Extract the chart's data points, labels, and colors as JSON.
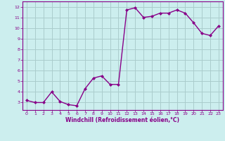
{
  "x": [
    0,
    1,
    2,
    3,
    4,
    5,
    6,
    7,
    8,
    9,
    10,
    11,
    12,
    13,
    14,
    15,
    16,
    17,
    18,
    19,
    20,
    21,
    22,
    23
  ],
  "y": [
    3.2,
    3.0,
    3.0,
    4.0,
    3.1,
    2.8,
    2.7,
    4.3,
    5.3,
    5.5,
    4.7,
    4.7,
    11.7,
    11.9,
    11.0,
    11.1,
    11.4,
    11.4,
    11.7,
    11.4,
    10.5,
    9.5,
    9.3,
    10.2
  ],
  "line_color": "#880088",
  "marker": "D",
  "marker_size": 2.0,
  "linewidth": 1.0,
  "xlim": [
    -0.5,
    23.5
  ],
  "ylim": [
    2.3,
    12.5
  ],
  "yticks": [
    3,
    4,
    5,
    6,
    7,
    8,
    9,
    10,
    11,
    12
  ],
  "xticks": [
    0,
    1,
    2,
    3,
    4,
    5,
    6,
    7,
    8,
    9,
    10,
    11,
    12,
    13,
    14,
    15,
    16,
    17,
    18,
    19,
    20,
    21,
    22,
    23
  ],
  "xlabel": "Windchill (Refroidissement éolien,°C)",
  "background_color": "#cceeee",
  "grid_color": "#aacccc",
  "spine_color": "#880088"
}
